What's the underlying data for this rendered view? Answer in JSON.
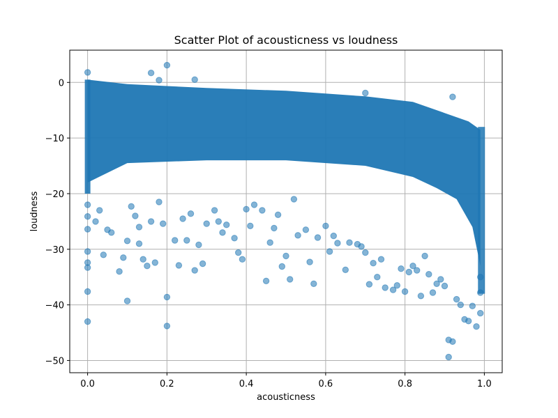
{
  "chart_data": {
    "type": "scatter",
    "title": "Scatter Plot of acousticness vs loudness",
    "xlabel": "acousticness",
    "ylabel": "loudness",
    "xlim": [
      -0.045,
      1.045
    ],
    "ylim": [
      -52.2,
      5.8
    ],
    "xticks": [
      0.0,
      0.2,
      0.4,
      0.6,
      0.8,
      1.0
    ],
    "xtick_labels": [
      "0.0",
      "0.2",
      "0.4",
      "0.6",
      "0.8",
      "1.0"
    ],
    "yticks": [
      0,
      -10,
      -20,
      -30,
      -40,
      -50
    ],
    "ytick_labels": [
      "0",
      "−10",
      "−20",
      "−30",
      "−40",
      "−50"
    ],
    "grid": true,
    "marker_color": "#1f77b4",
    "marker_alpha": 0.55,
    "series": [
      {
        "x": [
          0.0,
          0.0,
          0.0,
          0.0,
          0.0,
          0.0,
          0.0,
          0.0,
          0.0,
          0.02,
          0.03,
          0.04,
          0.05,
          0.06,
          0.08,
          0.09,
          0.1,
          0.1,
          0.11,
          0.12,
          0.13,
          0.13,
          0.14,
          0.15,
          0.16,
          0.17,
          0.18,
          0.19,
          0.2,
          0.2,
          0.22,
          0.23,
          0.24,
          0.25,
          0.26,
          0.27,
          0.28,
          0.29,
          0.3,
          0.32,
          0.33,
          0.34,
          0.35,
          0.37,
          0.38,
          0.39,
          0.4,
          0.41,
          0.42,
          0.44,
          0.45,
          0.46,
          0.47,
          0.48,
          0.49,
          0.5,
          0.51,
          0.52,
          0.53,
          0.55,
          0.56,
          0.57,
          0.58,
          0.6,
          0.61,
          0.62,
          0.63,
          0.65,
          0.66,
          0.68,
          0.69,
          0.7,
          0.71,
          0.72,
          0.73,
          0.74,
          0.75,
          0.77,
          0.78,
          0.79,
          0.8,
          0.81,
          0.82,
          0.83,
          0.84,
          0.85,
          0.86,
          0.87,
          0.88,
          0.89,
          0.9,
          0.91,
          0.92,
          0.93,
          0.94,
          0.95,
          0.96,
          0.97,
          0.98,
          0.99,
          0.99,
          0.99,
          0.91,
          0.92,
          0.2,
          0.18,
          0.16,
          0.27,
          0.7
        ],
        "y": [
          -43.0,
          -37.6,
          -33.3,
          -32.4,
          -30.4,
          -26.4,
          -24.1,
          -22.0,
          1.8,
          -25.0,
          -23.0,
          -31.0,
          -26.5,
          -27.0,
          -34.0,
          -31.5,
          -39.3,
          -28.5,
          -22.3,
          -24.0,
          -29.0,
          -26.0,
          -31.8,
          -33.0,
          -25.0,
          -32.4,
          -21.5,
          -25.4,
          -43.8,
          -38.6,
          -28.4,
          -32.9,
          -24.5,
          -28.4,
          -23.6,
          -33.8,
          -29.2,
          -32.6,
          -25.4,
          -23.0,
          -25.0,
          -27.0,
          -25.6,
          -28.0,
          -30.6,
          -31.8,
          -22.8,
          -25.8,
          -22.0,
          -23.0,
          -35.7,
          -28.8,
          -26.2,
          -23.8,
          -33.1,
          -31.2,
          -35.4,
          -21.0,
          -27.5,
          -26.5,
          -32.3,
          -36.2,
          -27.9,
          -25.8,
          -30.4,
          -27.6,
          -28.9,
          -33.7,
          -28.8,
          -29.1,
          -29.5,
          -30.6,
          -36.3,
          -32.5,
          -35.0,
          -31.8,
          -36.9,
          -37.3,
          -36.5,
          -33.5,
          -37.6,
          -34.1,
          -33.0,
          -33.8,
          -38.4,
          -31.2,
          -34.5,
          -37.8,
          -36.2,
          -35.4,
          -36.6,
          -46.3,
          -46.6,
          -39.0,
          -40.0,
          -42.6,
          -42.9,
          -40.2,
          -43.9,
          -41.5,
          -37.8,
          -35.0,
          -49.4,
          -2.6,
          3.1,
          0.4,
          1.7,
          0.5,
          -1.9
        ]
      }
    ]
  }
}
